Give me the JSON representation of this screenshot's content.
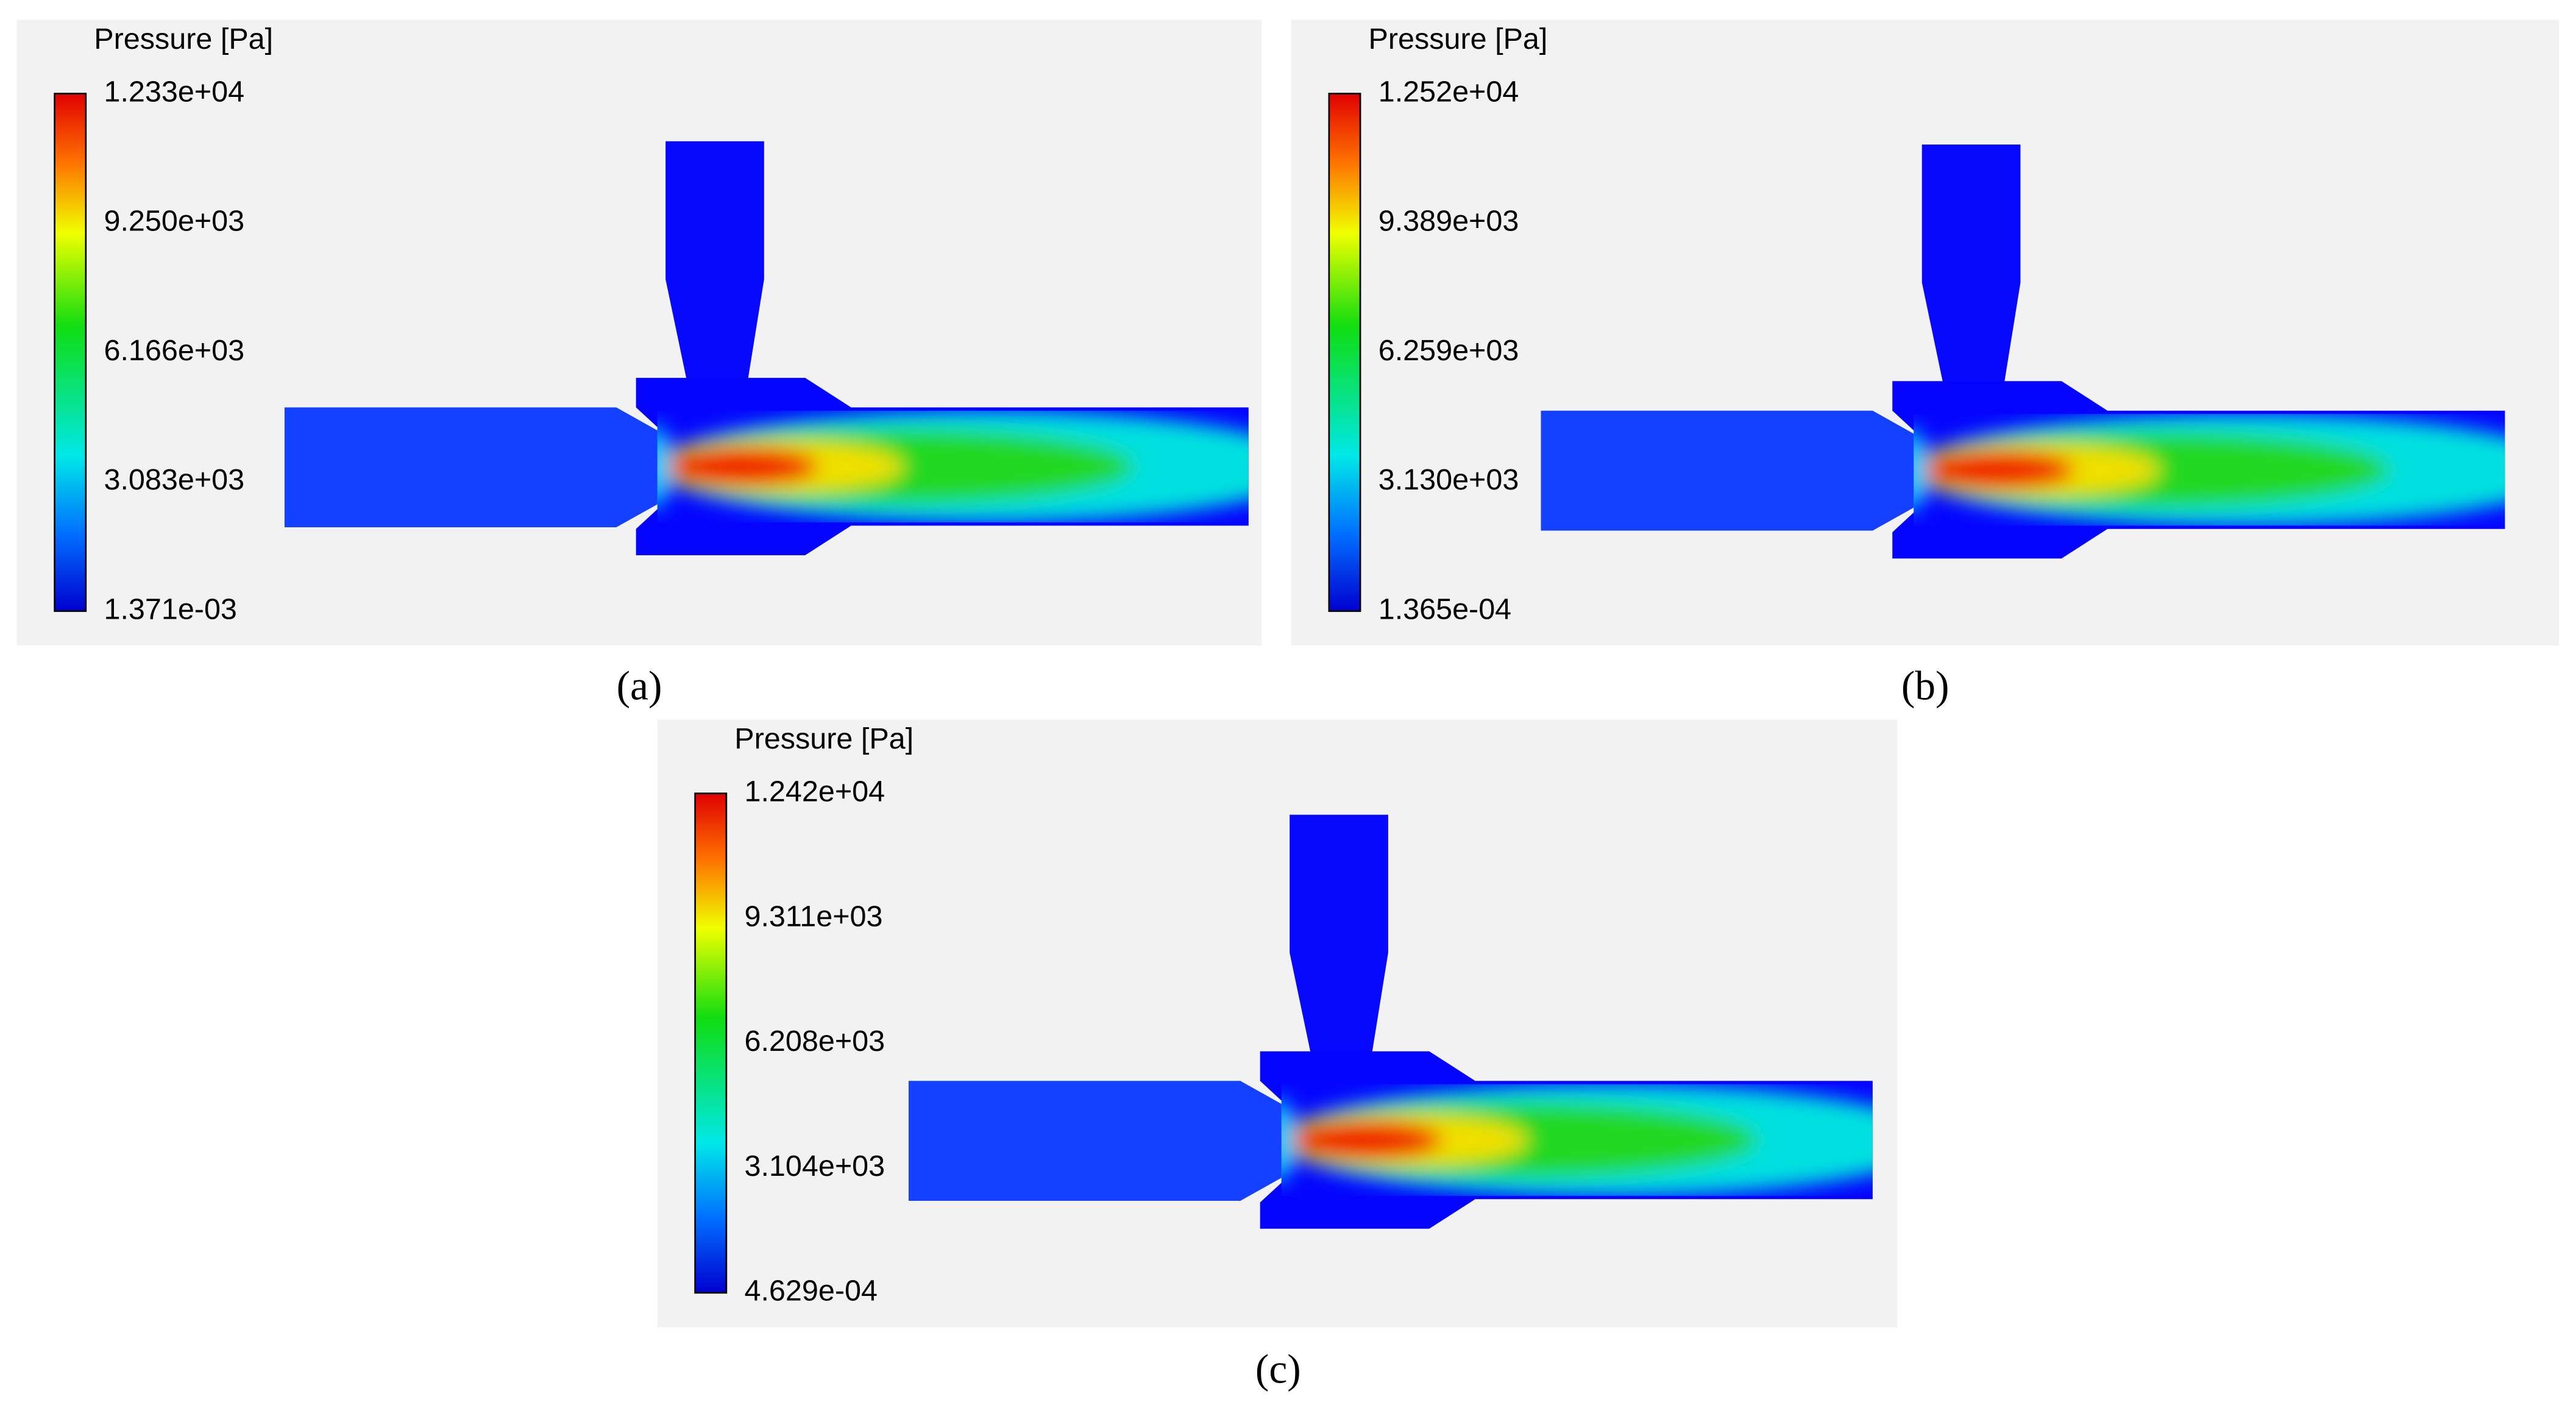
{
  "panels": [
    {
      "title": "Pressure [Pa]",
      "colorbar_labels": [
        "1.233e+04",
        "9.250e+03",
        "6.166e+03",
        "3.083e+03",
        "1.371e-03"
      ],
      "caption": "(a)"
    },
    {
      "title": "Pressure [Pa]",
      "colorbar_labels": [
        "1.252e+04",
        "9.389e+03",
        "6.259e+03",
        "3.130e+03",
        "1.365e-04"
      ],
      "caption": "(b)"
    },
    {
      "title": "Pressure [Pa]",
      "colorbar_labels": [
        "1.242e+04",
        "9.311e+03",
        "6.208e+03",
        "3.104e+03",
        "4.629e-04"
      ],
      "caption": "(c)"
    }
  ]
}
